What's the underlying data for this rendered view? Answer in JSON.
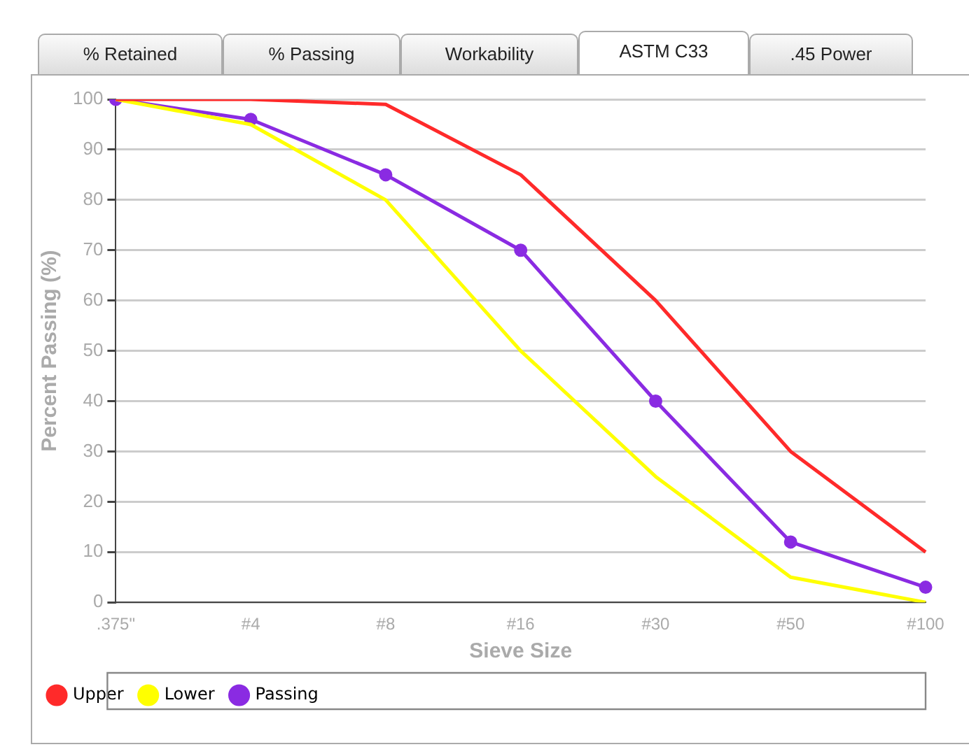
{
  "chart_data": {
    "type": "line",
    "annotations": [
      "% Retained",
      "% Passing",
      "Workability",
      "ASTM C33",
      ".45 Power"
    ],
    "xlabel": "Sieve Size",
    "ylabel": "Percent Passing (%)",
    "categories": [
      ".375\"",
      "#4",
      "#8",
      "#16",
      "#30",
      "#50",
      "#100"
    ],
    "series": [
      {
        "name": "Upper",
        "color": "#ff2a2a",
        "values": [
          100,
          100,
          99,
          85,
          60,
          30,
          10
        ],
        "marker": "none"
      },
      {
        "name": "Lower",
        "color": "#ffff00",
        "values": [
          100,
          95,
          80,
          50,
          25,
          5,
          0
        ],
        "marker": "none"
      },
      {
        "name": "Passing",
        "color": "#8a2be2",
        "values": [
          100,
          96,
          85,
          70,
          40,
          12,
          3
        ],
        "marker": "circle"
      }
    ],
    "ylim": [
      0,
      100
    ],
    "yticks": [
      0,
      10,
      20,
      30,
      40,
      50,
      60,
      70,
      80,
      90,
      100
    ],
    "grid": "y",
    "legend": "bottom",
    "line_style": "solid"
  }
}
